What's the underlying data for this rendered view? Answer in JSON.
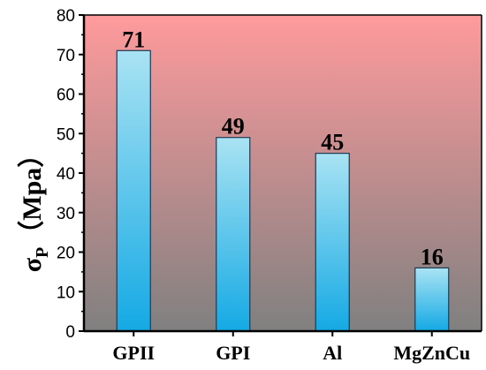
{
  "chart_data": {
    "type": "bar",
    "categories": [
      "GPII",
      "GPI",
      "Al",
      "MgZnCu"
    ],
    "values": [
      71,
      49,
      45,
      16
    ],
    "data_labels": [
      "71",
      "49",
      "45",
      "16"
    ],
    "title": "",
    "xlabel": "",
    "ylabel": "σP（Mpa）",
    "ylabel_main": "σ",
    "ylabel_sub": "P",
    "ylabel_unit": "（Mpa）",
    "ylim": [
      0,
      80
    ],
    "yticks": [
      0,
      10,
      20,
      30,
      40,
      50,
      60,
      70,
      80
    ],
    "ytick_labels": [
      "0",
      "10",
      "20",
      "30",
      "40",
      "50",
      "60",
      "70",
      "80"
    ],
    "grid": false,
    "legend": "none",
    "colors": {
      "bar_top": "#a9e3f3",
      "bar_bottom": "#14a9e4",
      "bar_stroke": "#1f3a55",
      "background_top": "#ff9a9c",
      "background_bottom": "#808080",
      "axis": "#000000"
    }
  }
}
